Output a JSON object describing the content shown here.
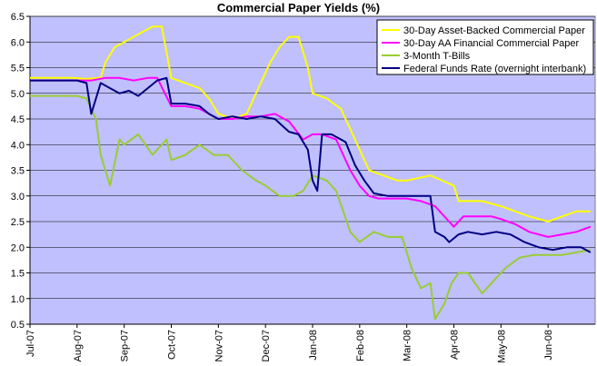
{
  "chart_data": {
    "type": "line",
    "title": "Commercial Paper Yields (%)",
    "xlabel": "",
    "ylabel": "",
    "ylim": [
      0.5,
      6.5
    ],
    "y_ticks": [
      "0.5",
      "1.0",
      "1.5",
      "2.0",
      "2.5",
      "3.0",
      "3.5",
      "4.0",
      "4.5",
      "5.0",
      "5.5",
      "6.0",
      "6.5"
    ],
    "x_tick_labels": [
      "Jul-07",
      "Aug-07",
      "Sep-07",
      "Oct-07",
      "Nov-07",
      "Dec-07",
      "Jan-08",
      "Feb-08",
      "Mar-08",
      "Apr-08",
      "May-08",
      "Jun-08"
    ],
    "grid": "horizontal",
    "plot_background": "#C0C0FF",
    "legend_position": "top-right",
    "x_unit": "months since Jul-07",
    "series": [
      {
        "name": "30-Day Asset-Backed Commercial Paper",
        "color": "#FFFF00",
        "x": [
          0,
          0.3,
          0.6,
          0.9,
          1.2,
          1.5,
          1.6,
          1.8,
          2.0,
          2.2,
          2.4,
          2.6,
          2.8,
          3.0,
          3.3,
          3.6,
          3.8,
          4.0,
          4.3,
          4.6,
          4.9,
          5.1,
          5.3,
          5.5,
          5.7,
          5.9,
          6.0,
          6.3,
          6.6,
          6.9,
          7.2,
          7.5,
          7.8,
          8.0,
          8.5,
          9.0,
          9.1,
          9.3,
          9.6,
          10.0,
          10.3,
          10.6,
          11.0,
          11.3,
          11.6,
          11.9
        ],
        "y": [
          5.3,
          5.3,
          5.3,
          5.3,
          5.28,
          5.3,
          5.6,
          5.9,
          6.0,
          6.1,
          6.2,
          6.3,
          6.3,
          5.3,
          5.2,
          5.1,
          4.9,
          4.6,
          4.5,
          4.6,
          5.2,
          5.6,
          5.9,
          6.1,
          6.1,
          5.5,
          5.0,
          4.9,
          4.7,
          4.1,
          3.5,
          3.4,
          3.3,
          3.3,
          3.4,
          3.2,
          2.9,
          2.9,
          2.9,
          2.8,
          2.7,
          2.6,
          2.5,
          2.6,
          2.7,
          2.7
        ]
      },
      {
        "name": "30-Day AA Financial Commercial Paper",
        "color": "#FF00FF",
        "x": [
          0,
          0.5,
          1.0,
          1.3,
          1.6,
          1.9,
          2.2,
          2.5,
          2.7,
          3.0,
          3.3,
          3.6,
          4.0,
          4.3,
          4.6,
          4.9,
          5.2,
          5.5,
          5.8,
          6.0,
          6.2,
          6.5,
          6.8,
          7.0,
          7.2,
          7.4,
          7.7,
          8.0,
          8.3,
          8.6,
          8.9,
          9.0,
          9.2,
          9.5,
          9.8,
          10.0,
          10.3,
          10.6,
          11.0,
          11.3,
          11.6,
          11.9
        ],
        "y": [
          5.25,
          5.25,
          5.25,
          5.25,
          5.3,
          5.3,
          5.25,
          5.3,
          5.3,
          4.75,
          4.75,
          4.7,
          4.5,
          4.5,
          4.55,
          4.55,
          4.6,
          4.45,
          4.1,
          4.2,
          4.2,
          4.1,
          3.5,
          3.2,
          3.0,
          2.95,
          2.95,
          2.95,
          2.9,
          2.8,
          2.5,
          2.4,
          2.6,
          2.6,
          2.6,
          2.55,
          2.45,
          2.3,
          2.2,
          2.25,
          2.3,
          2.4
        ]
      },
      {
        "name": "3-Month T-Bills",
        "color": "#99CC33",
        "x": [
          0,
          0.5,
          1.0,
          1.2,
          1.4,
          1.5,
          1.7,
          1.9,
          2.0,
          2.3,
          2.6,
          2.9,
          3.0,
          3.3,
          3.6,
          3.9,
          4.2,
          4.5,
          4.8,
          5.0,
          5.3,
          5.6,
          5.8,
          6.0,
          6.3,
          6.5,
          6.8,
          7.0,
          7.3,
          7.6,
          7.9,
          8.1,
          8.3,
          8.5,
          8.6,
          8.8,
          8.95,
          9.1,
          9.3,
          9.6,
          9.9,
          10.1,
          10.4,
          10.7,
          11.0,
          11.3,
          11.6,
          11.9
        ],
        "y": [
          4.95,
          4.95,
          4.95,
          4.9,
          4.5,
          3.8,
          3.2,
          4.1,
          4.0,
          4.2,
          3.8,
          4.1,
          3.7,
          3.8,
          4.0,
          3.8,
          3.8,
          3.5,
          3.3,
          3.2,
          3.0,
          3.0,
          3.1,
          3.4,
          3.3,
          3.1,
          2.3,
          2.1,
          2.3,
          2.2,
          2.2,
          1.6,
          1.2,
          1.3,
          0.6,
          0.9,
          1.3,
          1.5,
          1.5,
          1.1,
          1.4,
          1.6,
          1.8,
          1.85,
          1.85,
          1.85,
          1.9,
          1.95
        ]
      },
      {
        "name": "Federal Funds Rate (overnight interbank)",
        "color": "#000080",
        "x": [
          0,
          0.5,
          1.0,
          1.2,
          1.3,
          1.5,
          1.7,
          1.9,
          2.1,
          2.3,
          2.5,
          2.7,
          2.9,
          3.0,
          3.3,
          3.6,
          3.8,
          4.0,
          4.3,
          4.6,
          4.9,
          5.2,
          5.5,
          5.7,
          5.9,
          6.0,
          6.1,
          6.2,
          6.4,
          6.7,
          6.9,
          7.1,
          7.3,
          7.6,
          7.9,
          8.2,
          8.5,
          8.6,
          8.8,
          8.9,
          9.1,
          9.3,
          9.6,
          9.9,
          10.2,
          10.5,
          10.8,
          11.1,
          11.4,
          11.7,
          11.9
        ],
        "y": [
          5.25,
          5.25,
          5.25,
          5.2,
          4.6,
          5.2,
          5.1,
          5.0,
          5.05,
          4.95,
          5.1,
          5.25,
          5.3,
          4.8,
          4.8,
          4.75,
          4.6,
          4.5,
          4.55,
          4.5,
          4.55,
          4.5,
          4.25,
          4.2,
          3.9,
          3.3,
          3.1,
          4.2,
          4.2,
          4.05,
          3.6,
          3.3,
          3.05,
          3.0,
          3.0,
          3.0,
          3.0,
          2.3,
          2.2,
          2.1,
          2.25,
          2.3,
          2.25,
          2.3,
          2.25,
          2.1,
          2.0,
          1.95,
          2.0,
          2.0,
          1.9
        ]
      }
    ]
  }
}
